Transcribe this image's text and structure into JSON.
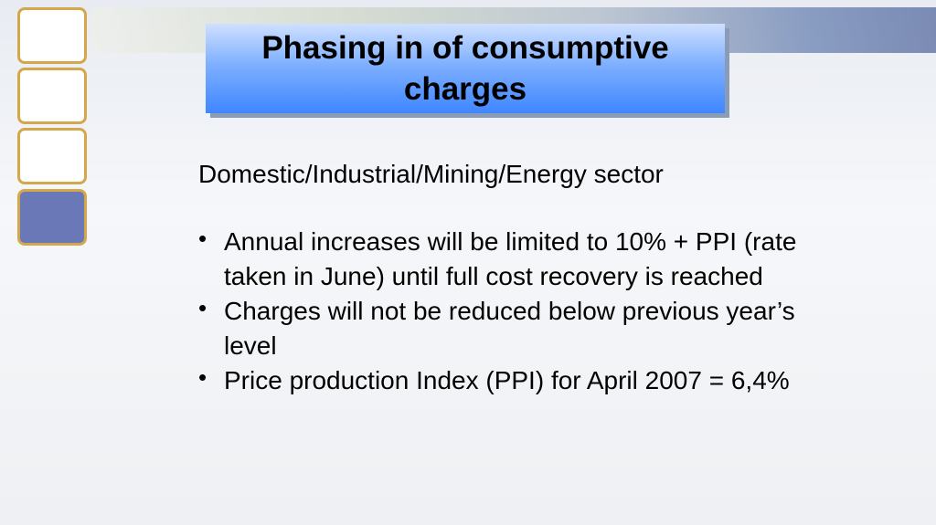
{
  "title": "Phasing in of consumptive charges",
  "heading": "Domestic/Industrial/Mining/Energy sector",
  "bullets": [
    "Annual increases will be limited to 10% + PPI (rate taken in June) until full cost recovery is reached",
    "Charges will not be reduced below previous year’s level",
    "Price production Index (PPI) for April 2007 = 6,4%"
  ]
}
